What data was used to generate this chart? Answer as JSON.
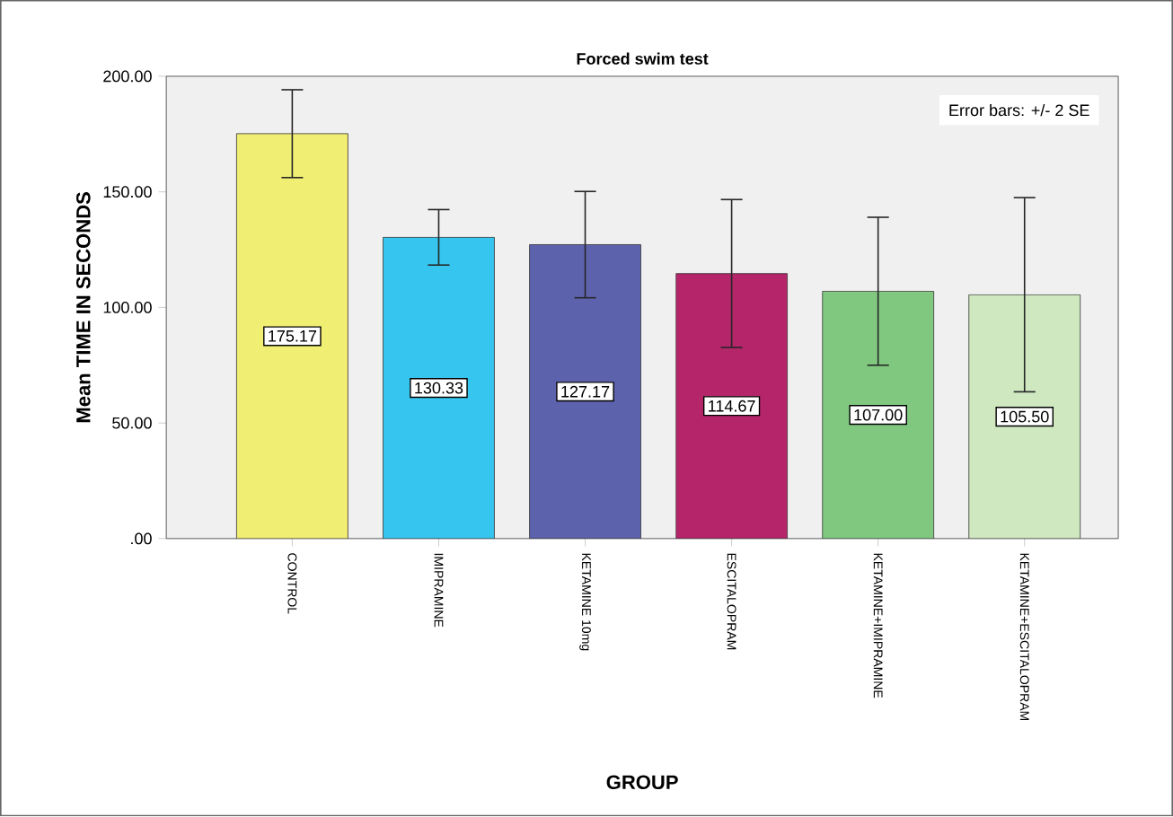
{
  "chart_data": {
    "type": "bar",
    "title": "Forced swim test",
    "xlabel": "GROUP",
    "ylabel": "Mean TIME IN SECONDS",
    "categories": [
      "CONTROL",
      "IMIPRAMINE",
      "KETAMINE 10mg",
      "ESCITALOPRAM",
      "KETAMINE+IMIPRAMINE",
      "KETAMINE+ESCITALOPRAM"
    ],
    "values": [
      175.17,
      130.33,
      127.17,
      114.67,
      107.0,
      105.5
    ],
    "colors": [
      "#f1ee74",
      "#35c5ee",
      "#5d62ad",
      "#b4256a",
      "#80c880",
      "#cfe8c0"
    ],
    "errors": [
      19,
      12,
      23,
      32,
      32,
      42
    ],
    "value_labels": [
      "175.17",
      "130.33",
      "127.17",
      "114.67",
      "107.00",
      "105.50"
    ],
    "ylim": [
      0,
      200
    ],
    "yticks": [
      {
        "value": 0,
        "label": ".00"
      },
      {
        "value": 50,
        "label": "50.00"
      },
      {
        "value": 100,
        "label": "100.00"
      },
      {
        "value": 150,
        "label": "150.00"
      },
      {
        "value": 200,
        "label": "200.00"
      }
    ],
    "annotations": [
      "Error bars: +/- 2 SE"
    ]
  }
}
